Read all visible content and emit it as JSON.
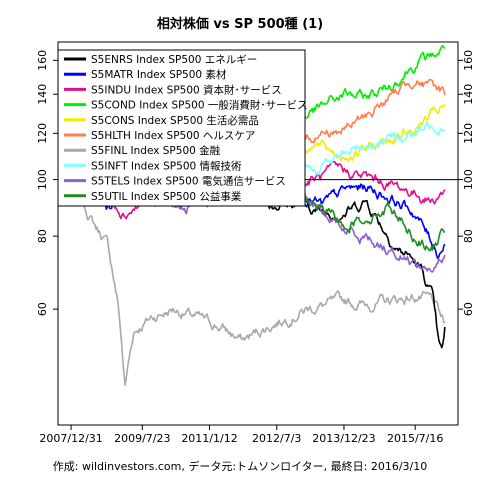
{
  "chart_data": {
    "type": "line",
    "title": "相対株価 vs SP 500種 (1)",
    "caption": "作成: wildinvestors.com, データ元:トムソンロイター, 最終日: 2016/3/10",
    "x_tick_labels": [
      "2007/12/31",
      "2009/7/23",
      "2011/1/12",
      "2012/7/3",
      "2013/12/23",
      "2015/7/16"
    ],
    "x_ticks": [
      "2007-12-31",
      "2009-07-23",
      "2011-01-12",
      "2012-07-03",
      "2013-12-23",
      "2015-07-16"
    ],
    "xlim": [
      "2007-12-31",
      "2016-03-10"
    ],
    "y_ticks": [
      60,
      80,
      100,
      120,
      140,
      160
    ],
    "ylim": [
      38,
      172
    ],
    "y_scale": "log",
    "hline": 100,
    "legend_position": "top-left",
    "series": [
      {
        "name": "S5ENRS Index SP500 エネルギー",
        "color": "#000000",
        "points": [
          [
            "2007-12-31",
            100
          ],
          [
            "2008-07-01",
            103
          ],
          [
            "2008-10-15",
            99
          ],
          [
            "2009-03-01",
            97
          ],
          [
            "2009-09-01",
            95
          ],
          [
            "2010-06-01",
            93
          ],
          [
            "2011-04-01",
            98
          ],
          [
            "2011-10-01",
            96
          ],
          [
            "2012-06-01",
            91
          ],
          [
            "2013-01-01",
            91
          ],
          [
            "2013-07-01",
            88
          ],
          [
            "2014-01-01",
            88
          ],
          [
            "2014-06-20",
            92
          ],
          [
            "2014-12-15",
            80
          ],
          [
            "2015-03-01",
            76
          ],
          [
            "2015-06-01",
            74
          ],
          [
            "2015-09-01",
            70
          ],
          [
            "2015-12-01",
            63
          ],
          [
            "2016-01-20",
            52
          ],
          [
            "2016-02-15",
            50
          ],
          [
            "2016-03-10",
            55
          ]
        ]
      },
      {
        "name": "S5MATR Index SP500 素材",
        "color": "#0000ff",
        "points": [
          [
            "2007-12-31",
            100
          ],
          [
            "2008-05-15",
            105
          ],
          [
            "2008-11-01",
            90
          ],
          [
            "2009-03-01",
            95
          ],
          [
            "2009-12-01",
            102
          ],
          [
            "2010-06-01",
            98
          ],
          [
            "2011-04-01",
            106
          ],
          [
            "2011-10-01",
            96
          ],
          [
            "2012-06-01",
            94
          ],
          [
            "2013-01-01",
            95
          ],
          [
            "2013-07-01",
            90
          ],
          [
            "2014-01-01",
            96
          ],
          [
            "2014-07-01",
            97
          ],
          [
            "2015-01-01",
            93
          ],
          [
            "2015-07-01",
            88
          ],
          [
            "2015-10-01",
            82
          ],
          [
            "2016-01-15",
            75
          ],
          [
            "2016-03-10",
            78
          ]
        ]
      },
      {
        "name": "S5INDU Index SP500 資本財･サービス",
        "color": "#e0118f",
        "points": [
          [
            "2007-12-31",
            100
          ],
          [
            "2008-06-01",
            102
          ],
          [
            "2009-03-01",
            88
          ],
          [
            "2009-10-01",
            92
          ],
          [
            "2010-06-01",
            96
          ],
          [
            "2011-04-01",
            100
          ],
          [
            "2011-10-01",
            95
          ],
          [
            "2012-06-01",
            96
          ],
          [
            "2013-03-01",
            99
          ],
          [
            "2013-12-01",
            104
          ],
          [
            "2014-06-01",
            101
          ],
          [
            "2015-01-01",
            98
          ],
          [
            "2015-07-01",
            95
          ],
          [
            "2015-12-01",
            92
          ],
          [
            "2016-03-10",
            96
          ]
        ]
      },
      {
        "name": "S5COND Index SP500 一般消費財･サービス",
        "color": "#00ee00",
        "points": [
          [
            "2007-12-31",
            100
          ],
          [
            "2008-06-01",
            97
          ],
          [
            "2009-03-01",
            95
          ],
          [
            "2009-10-01",
            102
          ],
          [
            "2010-06-01",
            108
          ],
          [
            "2011-01-12",
            115
          ],
          [
            "2011-10-01",
            118
          ],
          [
            "2012-07-03",
            122
          ],
          [
            "2013-06-01",
            132
          ],
          [
            "2013-12-23",
            140
          ],
          [
            "2014-06-01",
            138
          ],
          [
            "2015-01-01",
            145
          ],
          [
            "2015-07-16",
            158
          ],
          [
            "2015-12-01",
            163
          ],
          [
            "2016-03-10",
            168
          ]
        ]
      },
      {
        "name": "S5CONS Index SP500 生活必需品",
        "color": "#eeee00",
        "points": [
          [
            "2007-12-31",
            100
          ],
          [
            "2008-09-01",
            110
          ],
          [
            "2009-03-01",
            120
          ],
          [
            "2009-10-01",
            112
          ],
          [
            "2010-06-01",
            114
          ],
          [
            "2011-01-12",
            110
          ],
          [
            "2011-10-01",
            118
          ],
          [
            "2012-07-03",
            116
          ],
          [
            "2013-06-01",
            114
          ],
          [
            "2013-12-23",
            110
          ],
          [
            "2014-06-01",
            112
          ],
          [
            "2015-01-01",
            118
          ],
          [
            "2015-07-16",
            122
          ],
          [
            "2015-10-01",
            126
          ],
          [
            "2016-03-10",
            133
          ]
        ]
      },
      {
        "name": "S5HLTH Index SP500 ヘルスケア",
        "color": "#ff7f50",
        "points": [
          [
            "2007-12-31",
            100
          ],
          [
            "2008-09-01",
            105
          ],
          [
            "2009-03-01",
            110
          ],
          [
            "2009-10-01",
            104
          ],
          [
            "2010-06-01",
            103
          ],
          [
            "2011-01-12",
            100
          ],
          [
            "2011-10-01",
            110
          ],
          [
            "2012-07-03",
            112
          ],
          [
            "2013-06-01",
            120
          ],
          [
            "2013-12-23",
            122
          ],
          [
            "2014-06-01",
            128
          ],
          [
            "2015-01-01",
            138
          ],
          [
            "2015-07-16",
            150
          ],
          [
            "2015-10-01",
            145
          ],
          [
            "2016-03-10",
            141
          ]
        ]
      },
      {
        "name": "S5FINL Index SP500 金融",
        "color": "#a9a9a9",
        "points": [
          [
            "2007-12-31",
            100
          ],
          [
            "2008-03-15",
            92
          ],
          [
            "2008-07-15",
            83
          ],
          [
            "2008-10-15",
            78
          ],
          [
            "2009-01-15",
            60
          ],
          [
            "2009-03-06",
            44
          ],
          [
            "2009-05-15",
            55
          ],
          [
            "2009-10-01",
            58
          ],
          [
            "2010-04-01",
            60
          ],
          [
            "2010-10-01",
            58
          ],
          [
            "2011-04-01",
            56
          ],
          [
            "2011-10-01",
            53
          ],
          [
            "2012-07-03",
            57
          ],
          [
            "2013-03-01",
            60
          ],
          [
            "2013-12-23",
            62
          ],
          [
            "2014-06-01",
            61
          ],
          [
            "2015-01-01",
            62
          ],
          [
            "2015-07-16",
            63
          ],
          [
            "2015-12-01",
            62
          ],
          [
            "2016-03-10",
            56
          ]
        ]
      },
      {
        "name": "S5INFT Index SP500 情報技術",
        "color": "#7fffff",
        "points": [
          [
            "2007-12-31",
            100
          ],
          [
            "2008-06-01",
            100
          ],
          [
            "2009-03-01",
            104
          ],
          [
            "2009-10-01",
            108
          ],
          [
            "2010-06-01",
            104
          ],
          [
            "2011-01-12",
            103
          ],
          [
            "2011-10-01",
            108
          ],
          [
            "2012-07-03",
            110
          ],
          [
            "2013-06-01",
            105
          ],
          [
            "2013-12-23",
            110
          ],
          [
            "2014-06-01",
            115
          ],
          [
            "2015-01-01",
            118
          ],
          [
            "2015-07-16",
            120
          ],
          [
            "2015-12-01",
            124
          ],
          [
            "2016-03-10",
            125
          ]
        ]
      },
      {
        "name": "S5TELS Index SP500 電気通信サービス",
        "color": "#8b5fcf",
        "points": [
          [
            "2007-12-31",
            100
          ],
          [
            "2008-05-01",
            95
          ],
          [
            "2008-10-15",
            98
          ],
          [
            "2009-03-01",
            102
          ],
          [
            "2009-10-01",
            92
          ],
          [
            "2010-06-01",
            90
          ],
          [
            "2011-01-12",
            91
          ],
          [
            "2011-10-01",
            94
          ],
          [
            "2012-07-03",
            96
          ],
          [
            "2013-03-01",
            92
          ],
          [
            "2013-12-23",
            82
          ],
          [
            "2014-06-01",
            80
          ],
          [
            "2015-01-01",
            76
          ],
          [
            "2015-07-16",
            72
          ],
          [
            "2015-12-01",
            70
          ],
          [
            "2016-03-10",
            73
          ]
        ]
      },
      {
        "name": "S5UTIL Index SP500 公益事業",
        "color": "#228b22",
        "points": [
          [
            "2007-12-31",
            100
          ],
          [
            "2008-06-01",
            105
          ],
          [
            "2008-10-15",
            98
          ],
          [
            "2009-03-01",
            96
          ],
          [
            "2009-10-01",
            90
          ],
          [
            "2010-06-01",
            92
          ],
          [
            "2011-01-12",
            94
          ],
          [
            "2011-10-01",
            100
          ],
          [
            "2012-07-03",
            96
          ],
          [
            "2013-03-01",
            92
          ],
          [
            "2013-12-23",
            84
          ],
          [
            "2014-06-01",
            86
          ],
          [
            "2015-01-01",
            90
          ],
          [
            "2015-07-16",
            80
          ],
          [
            "2015-12-01",
            76
          ],
          [
            "2016-03-10",
            82
          ]
        ]
      }
    ]
  }
}
